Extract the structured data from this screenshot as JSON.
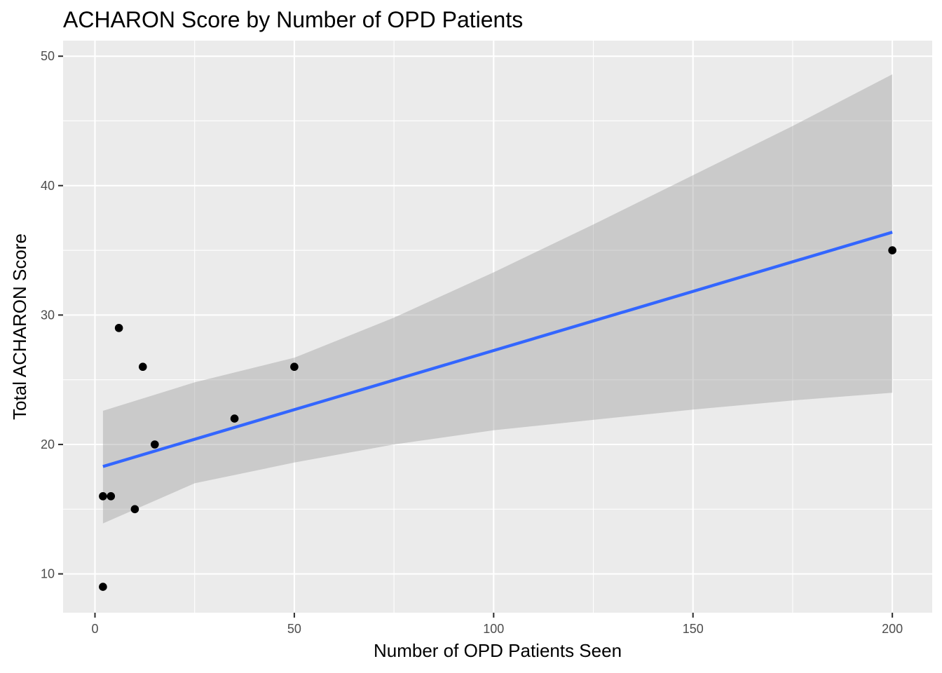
{
  "chart_data": {
    "type": "scatter",
    "title": "ACHARON Score by Number of OPD Patients",
    "xlabel": "Number of OPD Patients Seen",
    "ylabel": "Total ACHARON Score",
    "xlim": [
      -8,
      210
    ],
    "ylim": [
      7,
      51.2
    ],
    "x_ticks": [
      0,
      50,
      100,
      150,
      200
    ],
    "y_ticks": [
      10,
      20,
      30,
      40,
      50
    ],
    "x_minor": [
      25,
      75,
      125,
      175
    ],
    "y_minor": [
      15,
      25,
      35,
      45
    ],
    "grid": true,
    "points": [
      {
        "x": 2,
        "y": 16
      },
      {
        "x": 2,
        "y": 9
      },
      {
        "x": 4,
        "y": 16
      },
      {
        "x": 6,
        "y": 29
      },
      {
        "x": 10,
        "y": 15
      },
      {
        "x": 12,
        "y": 26
      },
      {
        "x": 15,
        "y": 20
      },
      {
        "x": 35,
        "y": 22
      },
      {
        "x": 50,
        "y": 26
      },
      {
        "x": 200,
        "y": 35
      }
    ],
    "fit_line": {
      "x": [
        2,
        200
      ],
      "y": [
        18.3,
        36.4
      ]
    },
    "confidence_band": {
      "x": [
        2,
        25,
        50,
        75,
        100,
        125,
        150,
        175,
        200
      ],
      "lower": [
        13.9,
        17.0,
        18.6,
        20.0,
        21.1,
        21.9,
        22.7,
        23.4,
        24.0
      ],
      "upper": [
        22.6,
        24.8,
        26.7,
        29.8,
        33.3,
        37.0,
        40.8,
        44.6,
        48.6
      ]
    },
    "colors": {
      "panel": "#EBEBEB",
      "grid": "#FFFFFF",
      "fit": "#3366FF",
      "band": "#999999",
      "point": "#000000"
    }
  }
}
